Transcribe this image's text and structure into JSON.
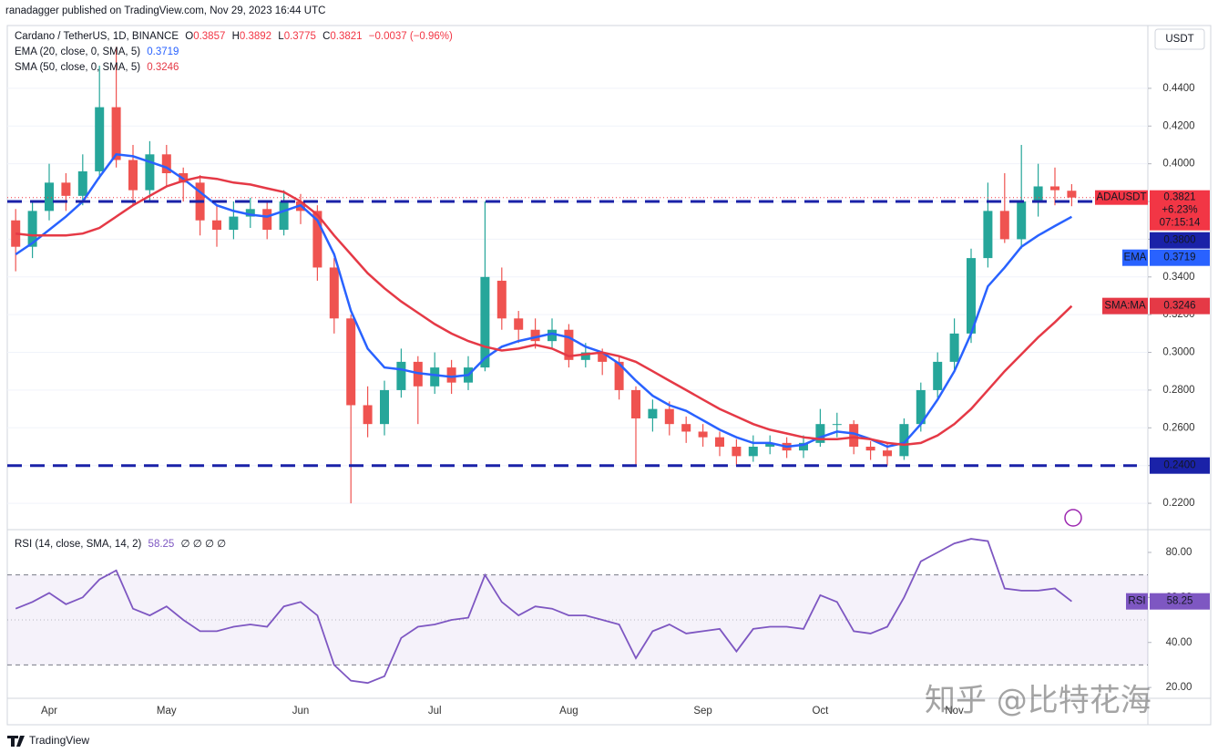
{
  "header": {
    "published": "ranadagger published on TradingView.com, Nov 29, 2023 16:44 UTC",
    "brand": "TradingView",
    "watermark": "知乎 @比特花海"
  },
  "legend": {
    "symbol": "Cardano / TetherUS, 1D, BINANCE",
    "ohlc": [
      {
        "key": "O",
        "value": "0.3857"
      },
      {
        "key": "H",
        "value": "0.3892"
      },
      {
        "key": "L",
        "value": "0.3775"
      },
      {
        "key": "C",
        "value": "0.3821"
      }
    ],
    "change": "−0.0037 (−0.96%)",
    "ema_label": "EMA (20, close, 0, SMA, 5)",
    "sma_label": "SMA (50, close, 0, SMA, 5)"
  },
  "chart_data": [
    {
      "type": "candlestick",
      "unit": "USDT",
      "categories": [
        null,
        null,
        "Apr",
        null,
        null,
        null,
        null,
        null,
        null,
        "May",
        null,
        null,
        null,
        null,
        null,
        null,
        null,
        "Jun",
        null,
        null,
        null,
        null,
        null,
        null,
        null,
        "Jul",
        null,
        null,
        null,
        null,
        null,
        null,
        null,
        "Aug",
        null,
        null,
        null,
        null,
        null,
        null,
        null,
        "Sep",
        null,
        null,
        null,
        null,
        null,
        null,
        "Oct",
        null,
        null,
        null,
        null,
        null,
        null,
        null,
        "Nov",
        null,
        null,
        null,
        null,
        null,
        null,
        null
      ],
      "open": [
        0.37,
        0.356,
        0.375,
        0.39,
        0.383,
        0.396,
        0.43,
        0.402,
        0.386,
        0.405,
        0.395,
        0.39,
        0.37,
        0.365,
        0.372,
        0.376,
        0.365,
        0.38,
        0.375,
        0.345,
        0.318,
        0.272,
        0.262,
        0.28,
        0.295,
        0.282,
        0.292,
        0.284,
        0.292,
        0.338,
        0.318,
        0.312,
        0.306,
        0.312,
        0.296,
        0.3,
        0.295,
        0.28,
        0.265,
        0.27,
        0.262,
        0.258,
        0.255,
        0.25,
        0.245,
        0.25,
        0.252,
        0.248,
        0.252,
        0.262,
        0.262,
        0.25,
        0.248,
        0.245,
        0.262,
        0.28,
        0.295,
        0.31,
        0.35,
        0.375,
        0.36,
        0.38,
        0.388,
        0.3857
      ],
      "high": [
        0.376,
        0.38,
        0.4,
        0.395,
        0.405,
        0.452,
        0.462,
        0.41,
        0.412,
        0.41,
        0.398,
        0.394,
        0.378,
        0.38,
        0.382,
        0.38,
        0.386,
        0.384,
        0.378,
        0.35,
        0.32,
        0.282,
        0.285,
        0.302,
        0.298,
        0.3,
        0.296,
        0.298,
        0.38,
        0.345,
        0.322,
        0.318,
        0.318,
        0.315,
        0.305,
        0.302,
        0.298,
        0.282,
        0.275,
        0.274,
        0.266,
        0.262,
        0.258,
        0.254,
        0.256,
        0.256,
        0.255,
        0.256,
        0.27,
        0.268,
        0.264,
        0.253,
        0.252,
        0.265,
        0.284,
        0.3,
        0.318,
        0.355,
        0.39,
        0.395,
        0.41,
        0.4,
        0.398,
        0.3892
      ],
      "low": [
        0.343,
        0.35,
        0.37,
        0.375,
        0.378,
        0.392,
        0.398,
        0.378,
        0.38,
        0.388,
        0.38,
        0.362,
        0.356,
        0.36,
        0.366,
        0.36,
        0.362,
        0.368,
        0.338,
        0.31,
        0.22,
        0.255,
        0.256,
        0.276,
        0.262,
        0.278,
        0.278,
        0.28,
        0.29,
        0.312,
        0.305,
        0.302,
        0.302,
        0.292,
        0.292,
        0.288,
        0.275,
        0.24,
        0.258,
        0.256,
        0.252,
        0.25,
        0.245,
        0.24,
        0.242,
        0.246,
        0.244,
        0.244,
        0.25,
        0.255,
        0.246,
        0.243,
        0.24,
        0.243,
        0.258,
        0.276,
        0.29,
        0.305,
        0.345,
        0.358,
        0.355,
        0.372,
        0.378,
        0.3775
      ],
      "close": [
        0.356,
        0.375,
        0.39,
        0.383,
        0.396,
        0.43,
        0.402,
        0.386,
        0.405,
        0.395,
        0.39,
        0.37,
        0.365,
        0.372,
        0.376,
        0.365,
        0.38,
        0.375,
        0.345,
        0.318,
        0.272,
        0.262,
        0.28,
        0.295,
        0.282,
        0.292,
        0.284,
        0.292,
        0.34,
        0.318,
        0.312,
        0.306,
        0.312,
        0.296,
        0.3,
        0.295,
        0.28,
        0.265,
        0.27,
        0.262,
        0.258,
        0.255,
        0.25,
        0.245,
        0.25,
        0.252,
        0.248,
        0.252,
        0.262,
        0.262,
        0.25,
        0.248,
        0.245,
        0.262,
        0.28,
        0.295,
        0.31,
        0.35,
        0.375,
        0.36,
        0.38,
        0.388,
        0.386,
        0.3821
      ],
      "colors": {
        "up": "#26a69a",
        "down": "#ef5350"
      },
      "series": [
        {
          "name": "EMA",
          "color": "#2962ff",
          "value_label": "0.3719",
          "values": [
            0.352,
            0.358,
            0.365,
            0.372,
            0.38,
            0.393,
            0.405,
            0.404,
            0.401,
            0.398,
            0.392,
            0.385,
            0.378,
            0.375,
            0.373,
            0.372,
            0.375,
            0.378,
            0.37,
            0.352,
            0.322,
            0.302,
            0.292,
            0.291,
            0.289,
            0.288,
            0.287,
            0.288,
            0.297,
            0.303,
            0.306,
            0.308,
            0.31,
            0.308,
            0.303,
            0.3,
            0.294,
            0.285,
            0.277,
            0.272,
            0.269,
            0.264,
            0.259,
            0.255,
            0.252,
            0.252,
            0.25,
            0.251,
            0.255,
            0.258,
            0.257,
            0.254,
            0.25,
            0.252,
            0.262,
            0.275,
            0.29,
            0.31,
            0.335,
            0.345,
            0.356,
            0.362,
            0.367,
            0.3719
          ]
        },
        {
          "name": "SMA:MA",
          "color": "#e53946",
          "value_label": "0.3246",
          "values": [
            0.363,
            0.362,
            0.362,
            0.362,
            0.363,
            0.366,
            0.372,
            0.378,
            0.383,
            0.388,
            0.391,
            0.393,
            0.392,
            0.39,
            0.389,
            0.387,
            0.385,
            0.38,
            0.373,
            0.362,
            0.352,
            0.342,
            0.334,
            0.327,
            0.321,
            0.315,
            0.31,
            0.306,
            0.303,
            0.301,
            0.302,
            0.304,
            0.302,
            0.298,
            0.299,
            0.3,
            0.298,
            0.295,
            0.29,
            0.285,
            0.28,
            0.275,
            0.27,
            0.266,
            0.262,
            0.259,
            0.257,
            0.255,
            0.254,
            0.254,
            0.255,
            0.254,
            0.252,
            0.251,
            0.252,
            0.256,
            0.262,
            0.27,
            0.28,
            0.29,
            0.299,
            0.308,
            0.316,
            0.3246
          ]
        }
      ],
      "levels": [
        {
          "value": 0.38,
          "label": "0.3800"
        },
        {
          "value": 0.24,
          "label": "0.2400"
        }
      ],
      "level_color": "#1a22a8",
      "last": {
        "label": "ADAUSDT",
        "price": "0.3821",
        "change": "+6.23%",
        "countdown": "07:15:14"
      },
      "ylim": [
        0.2065,
        0.4733
      ],
      "yticks": [
        {
          "value": 0.22,
          "label": "0.2200"
        },
        {
          "value": 0.24,
          "label": "0.2400"
        },
        {
          "value": 0.26,
          "label": "0.2600"
        },
        {
          "value": 0.28,
          "label": "0.2800"
        },
        {
          "value": 0.3,
          "label": "0.3000"
        },
        {
          "value": 0.32,
          "label": "0.3200"
        },
        {
          "value": 0.34,
          "label": "0.3400"
        },
        {
          "value": 0.36,
          "label": "0.3600"
        },
        {
          "value": 0.38,
          "label": "0.3800"
        },
        {
          "value": 0.4,
          "label": "0.4000"
        },
        {
          "value": 0.42,
          "label": "0.4200"
        },
        {
          "value": 0.44,
          "label": "0.4400"
        }
      ],
      "grid": true
    },
    {
      "type": "line",
      "title": "RSI (14, close, SMA, 14, 2)",
      "extra": "∅ ∅ ∅ ∅",
      "series": [
        {
          "name": "RSI",
          "color": "#7e57c2",
          "value_label": "58.25",
          "values": [
            55,
            58,
            62,
            57,
            60,
            68,
            72,
            55,
            52,
            56,
            50,
            45,
            45,
            47,
            48,
            47,
            56,
            58,
            52,
            30,
            23,
            22,
            25,
            42,
            47,
            48,
            50,
            51,
            70,
            58,
            52,
            56,
            55,
            52,
            52,
            50,
            48,
            33,
            45,
            48,
            44,
            45,
            46,
            36,
            46,
            47,
            47,
            46,
            61,
            58,
            45,
            44,
            47,
            60,
            76,
            80,
            84,
            86,
            85,
            64,
            63,
            63,
            64,
            58.25
          ]
        }
      ],
      "bands": [
        30,
        70
      ],
      "midline": 50,
      "band_color": "#7e57c2",
      "ylim": [
        15.6,
        89.7
      ],
      "yticks": [
        {
          "value": 20,
          "label": "20.00"
        },
        {
          "value": 40,
          "label": "40.00"
        },
        {
          "value": 60,
          "label": "60.00"
        },
        {
          "value": 80,
          "label": "80.00"
        }
      ]
    }
  ]
}
